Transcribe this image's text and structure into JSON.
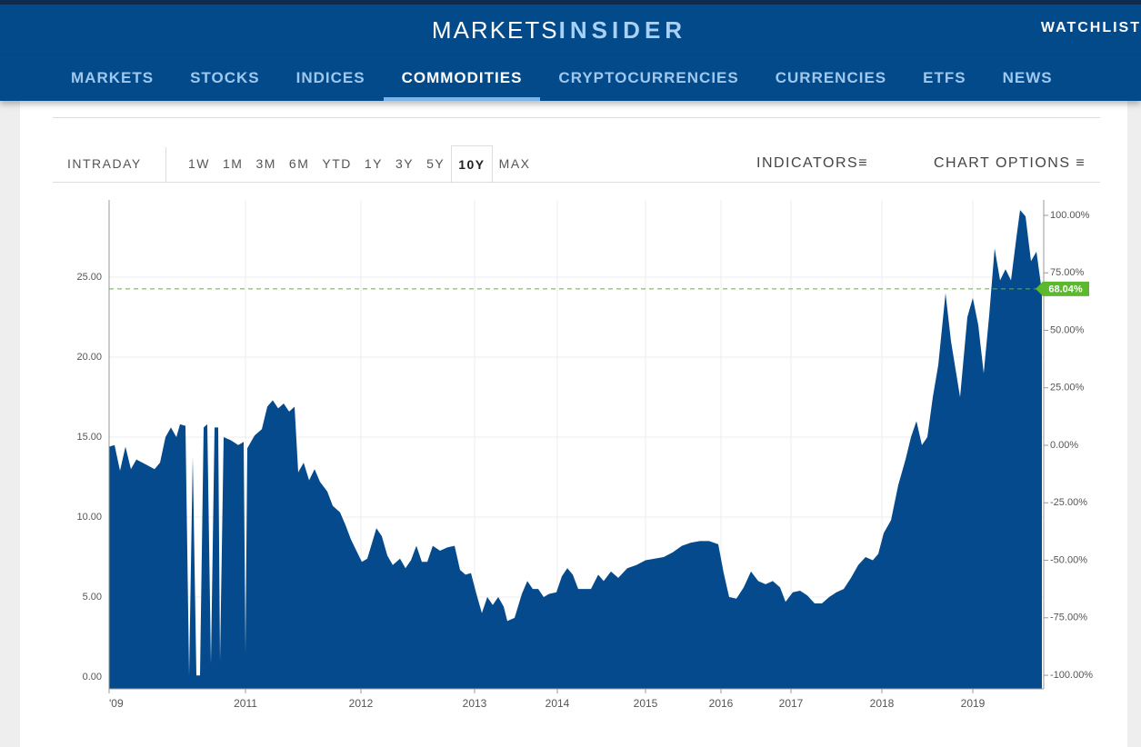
{
  "header": {
    "logo_left": "MARKETS",
    "logo_right": "INSIDER",
    "watchlist": "WATCHLIST"
  },
  "nav": {
    "items": [
      "MARKETS",
      "STOCKS",
      "INDICES",
      "COMMODITIES",
      "CRYPTOCURRENCIES",
      "CURRENCIES",
      "ETFS",
      "NEWS"
    ],
    "active": 3
  },
  "toolbar": {
    "intraday": "INTRADAY",
    "ranges": [
      "1W",
      "1M",
      "3M",
      "6M",
      "YTD",
      "1Y",
      "3Y",
      "5Y",
      "10Y",
      "MAX"
    ],
    "active_range": 8,
    "indicators": "INDICATORS",
    "chart_options": "CHART OPTIONS"
  },
  "chart_data": {
    "type": "area",
    "color": "#054a8c",
    "grid": true,
    "x": [
      0,
      0.6,
      1.2,
      1.8,
      2.4,
      3,
      4,
      5,
      5.6,
      6.2,
      6.8,
      7.4,
      7.8,
      8.4,
      8.8,
      9.2,
      9.6,
      10,
      10.4,
      10.8,
      11.2,
      11.6,
      12,
      12.2,
      12.6,
      13.4,
      14.2,
      14.8,
      15,
      15.2,
      16,
      16.8,
      17.4,
      18,
      18.6,
      19.2,
      19.8,
      20.4,
      20.8,
      21.4,
      22,
      22.6,
      23.2,
      24,
      24.6,
      25.4,
      26,
      26.6,
      27.2,
      27.8,
      28.4,
      29.4,
      30,
      30.6,
      31.2,
      32,
      32.6,
      33.2,
      33.8,
      34.4,
      35,
      35.6,
      36.4,
      37.2,
      38,
      38.6,
      39.2,
      39.8,
      40.4,
      41,
      41.6,
      42.2,
      42.8,
      43.4,
      43.8,
      44.6,
      45.4,
      46,
      46.6,
      47.2,
      47.8,
      48.4,
      49.2,
      49.8,
      50.4,
      51,
      51.6,
      52.2,
      53,
      53.8,
      54.4,
      55.2,
      56,
      57,
      58,
      59,
      60,
      61,
      62,
      63,
      64,
      65,
      66,
      67,
      67.6,
      68.2,
      69,
      69.8,
      70.6,
      71.4,
      72.2,
      73,
      73.8,
      74.4,
      75.2,
      76,
      76.8,
      77.6,
      78.4,
      79.2,
      80,
      80.8,
      81.6,
      82.4,
      83.2,
      84,
      84.6,
      85.2,
      86,
      86.8,
      87.6,
      88.2,
      88.8,
      89.4,
      90,
      90.6,
      91.2,
      92,
      92.6,
      93.6,
      94.4,
      95,
      95.6,
      96.2,
      96.8,
      97.4,
      98,
      98.6,
      99.2,
      99.8,
      100.2,
      100.8,
      101.4,
      102,
      102.6
    ],
    "values": [
      14.4,
      14.5,
      12.9,
      14.4,
      13.0,
      13.6,
      13.3,
      13.0,
      13.4,
      15.0,
      15.6,
      15.0,
      15.8,
      15.7,
      0.1,
      13.8,
      0.1,
      0.1,
      15.6,
      15.8,
      0.8,
      15.6,
      15.6,
      1.0,
      15.0,
      14.8,
      14.5,
      14.7,
      1.5,
      14.3,
      15.1,
      15.5,
      16.9,
      17.3,
      16.8,
      17.1,
      16.6,
      16.9,
      12.8,
      13.4,
      12.3,
      13.0,
      12.2,
      11.6,
      10.7,
      10.3,
      9.5,
      8.6,
      7.9,
      7.2,
      7.4,
      9.3,
      8.8,
      7.6,
      7.0,
      7.4,
      6.8,
      7.3,
      8.2,
      7.2,
      7.2,
      8.2,
      7.9,
      8.1,
      8.2,
      6.7,
      6.4,
      6.5,
      5.2,
      4.0,
      5.0,
      4.5,
      5.0,
      4.4,
      3.5,
      3.7,
      5.2,
      6.0,
      5.5,
      5.5,
      5.0,
      5.2,
      5.3,
      6.3,
      6.8,
      6.4,
      5.5,
      5.5,
      5.5,
      6.4,
      6.0,
      6.6,
      6.2,
      6.8,
      7.0,
      7.3,
      7.4,
      7.5,
      7.8,
      8.2,
      8.4,
      8.5,
      8.5,
      8.3,
      6.5,
      5.0,
      4.9,
      5.6,
      6.6,
      6.0,
      5.8,
      6.0,
      5.6,
      4.7,
      5.3,
      5.4,
      5.1,
      4.6,
      4.6,
      5.0,
      5.3,
      5.5,
      6.2,
      7.0,
      7.5,
      7.3,
      7.7,
      9.0,
      9.8,
      12.0,
      13.6,
      15.0,
      16.0,
      14.5,
      15.0,
      17.5,
      19.5,
      24.0,
      21.0,
      17.5,
      22.5,
      23.7,
      22.0,
      19.0,
      22.6,
      26.8,
      24.8,
      25.5,
      24.8,
      27.5,
      29.2,
      28.8,
      26.0,
      26.6,
      24.1
    ],
    "xlim": [
      0,
      102.8
    ],
    "xticks": [
      {
        "value": 0,
        "label": "'09"
      },
      {
        "value": 15,
        "label": "2011"
      },
      {
        "value": 27.7,
        "label": "2012"
      },
      {
        "value": 40.2,
        "label": "2013"
      },
      {
        "value": 49.3,
        "label": "2014"
      },
      {
        "value": 59,
        "label": "2015"
      },
      {
        "value": 67.3,
        "label": "2016"
      },
      {
        "value": 75,
        "label": "2017"
      },
      {
        "value": 85,
        "label": "2018"
      },
      {
        "value": 95,
        "label": "2019"
      }
    ],
    "ylim": [
      -0.74,
      29.83
    ],
    "yticks": [
      {
        "value": 0,
        "label": "0.00"
      },
      {
        "value": 5,
        "label": "5.00"
      },
      {
        "value": 10,
        "label": "10.00"
      },
      {
        "value": 15,
        "label": "15.00"
      },
      {
        "value": 20,
        "label": "20.00"
      },
      {
        "value": 25,
        "label": "25.00"
      }
    ],
    "y2lim": [
      -105.9,
      106.7
    ],
    "y2ticks": [
      {
        "value": -100,
        "label": "-100.00%"
      },
      {
        "value": -75,
        "label": "-75.00%"
      },
      {
        "value": -50,
        "label": "-50.00%"
      },
      {
        "value": -25,
        "label": "-25.00%"
      },
      {
        "value": 0,
        "label": "0.00%"
      },
      {
        "value": 25,
        "label": "25.00%"
      },
      {
        "value": 50,
        "label": "50.00%"
      },
      {
        "value": 75,
        "label": "75.00%"
      },
      {
        "value": 100,
        "label": "100.00%"
      }
    ],
    "current_change": {
      "value": 68.04,
      "label": "68.04%",
      "color": "#5cb82e",
      "axis": "y2"
    }
  }
}
